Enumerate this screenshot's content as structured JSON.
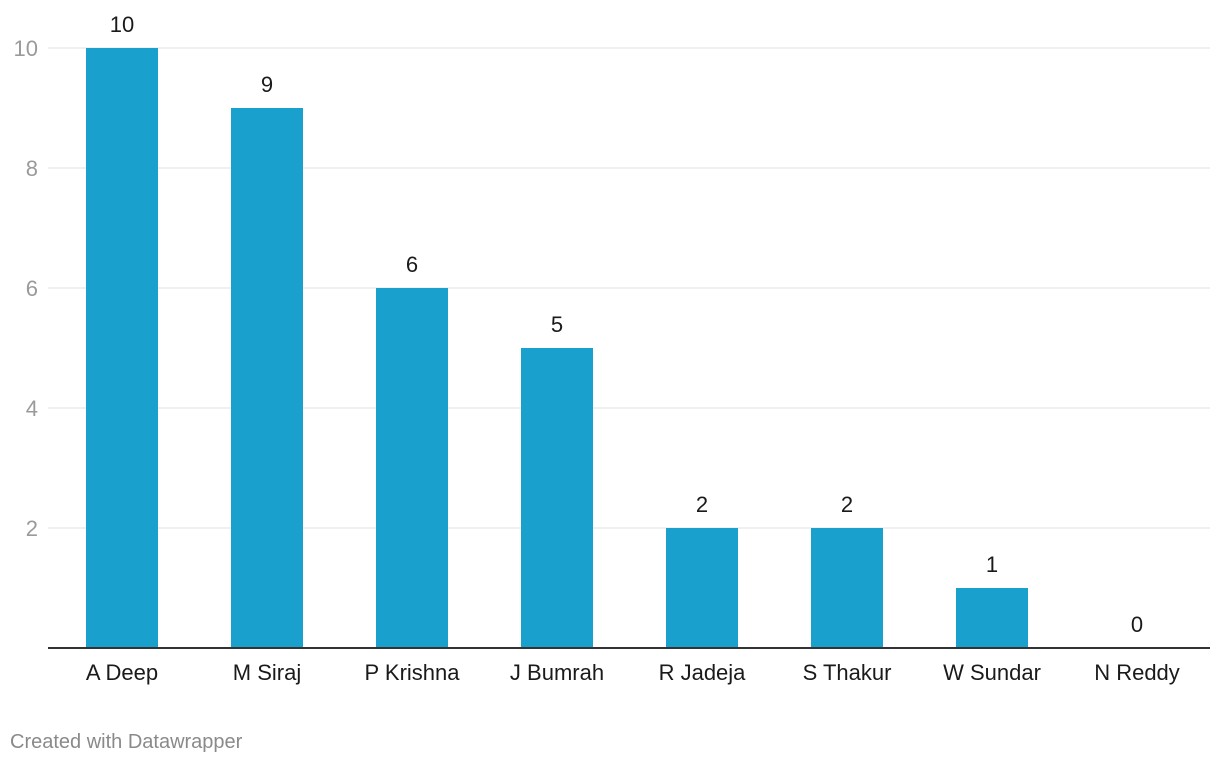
{
  "chart_data": {
    "type": "bar",
    "categories": [
      "A Deep",
      "M Siraj",
      "P Krishna",
      "J Bumrah",
      "R Jadeja",
      "S Thakur",
      "W Sundar",
      "N Reddy"
    ],
    "values": [
      10,
      9,
      6,
      5,
      2,
      2,
      1,
      0
    ],
    "data_labels": [
      "10",
      "9",
      "6",
      "5",
      "2",
      "2",
      "1",
      "0"
    ],
    "y_ticks": [
      2,
      4,
      6,
      8,
      10
    ],
    "ylim": [
      0,
      10
    ],
    "grid": true,
    "bar_color": "#1aa0cc",
    "title": "",
    "xlabel": "",
    "ylabel": ""
  },
  "footer": {
    "credit": "Created with Datawrapper"
  }
}
